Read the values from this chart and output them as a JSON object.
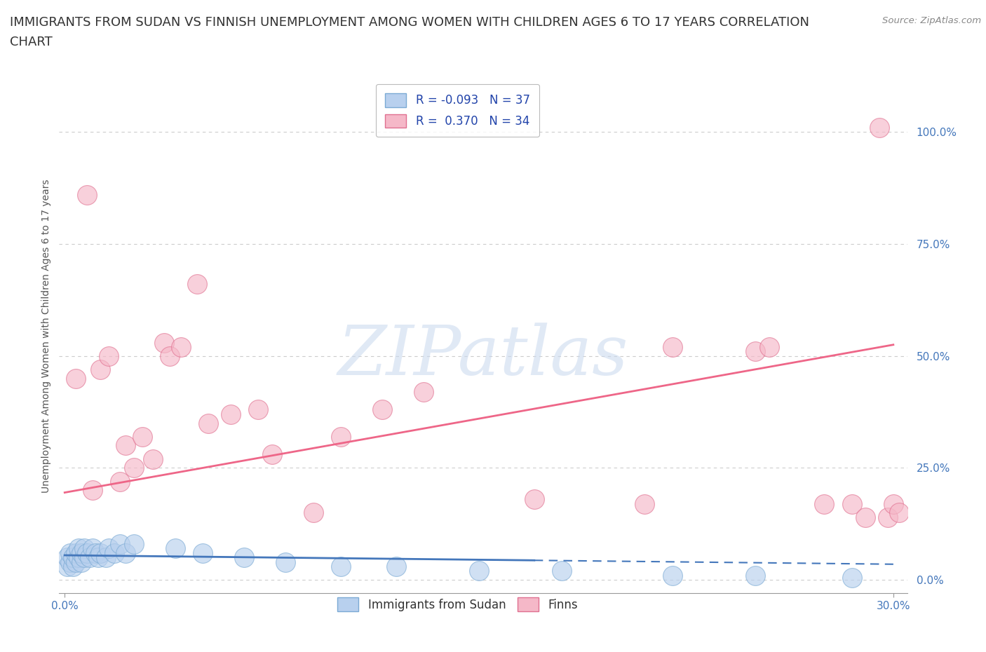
{
  "title_line1": "IMMIGRANTS FROM SUDAN VS FINNISH UNEMPLOYMENT AMONG WOMEN WITH CHILDREN AGES 6 TO 17 YEARS CORRELATION",
  "title_line2": "CHART",
  "source_text": "Source: ZipAtlas.com",
  "ylabel": "Unemployment Among Women with Children Ages 6 to 17 years",
  "watermark": "ZIPatlas",
  "xlim": [
    -0.002,
    0.305
  ],
  "ylim": [
    -0.03,
    1.12
  ],
  "yticks": [
    0.0,
    0.25,
    0.5,
    0.75,
    1.0
  ],
  "ytick_labels": [
    "0.0%",
    "25.0%",
    "50.0%",
    "75.0%",
    "100.0%"
  ],
  "xticks": [
    0.0,
    0.3
  ],
  "xtick_labels": [
    "0.0%",
    "30.0%"
  ],
  "blue_scatter_x": [
    0.001,
    0.001,
    0.002,
    0.002,
    0.003,
    0.003,
    0.004,
    0.004,
    0.005,
    0.005,
    0.006,
    0.006,
    0.007,
    0.007,
    0.008,
    0.009,
    0.01,
    0.011,
    0.012,
    0.013,
    0.015,
    0.016,
    0.018,
    0.02,
    0.022,
    0.025,
    0.04,
    0.05,
    0.065,
    0.08,
    0.1,
    0.12,
    0.15,
    0.18,
    0.22,
    0.25,
    0.285
  ],
  "blue_scatter_y": [
    0.03,
    0.05,
    0.04,
    0.06,
    0.03,
    0.05,
    0.04,
    0.06,
    0.05,
    0.07,
    0.04,
    0.06,
    0.05,
    0.07,
    0.06,
    0.05,
    0.07,
    0.06,
    0.05,
    0.06,
    0.05,
    0.07,
    0.06,
    0.08,
    0.06,
    0.08,
    0.07,
    0.06,
    0.05,
    0.04,
    0.03,
    0.03,
    0.02,
    0.02,
    0.01,
    0.01,
    0.005
  ],
  "pink_scatter_x": [
    0.004,
    0.008,
    0.01,
    0.013,
    0.016,
    0.02,
    0.022,
    0.025,
    0.028,
    0.032,
    0.036,
    0.038,
    0.042,
    0.048,
    0.052,
    0.06,
    0.07,
    0.075,
    0.09,
    0.1,
    0.115,
    0.13,
    0.17,
    0.21,
    0.22,
    0.25,
    0.255,
    0.275,
    0.285,
    0.29,
    0.295,
    0.298,
    0.3,
    0.302
  ],
  "pink_scatter_y": [
    0.45,
    0.86,
    0.2,
    0.47,
    0.5,
    0.22,
    0.3,
    0.25,
    0.32,
    0.27,
    0.53,
    0.5,
    0.52,
    0.66,
    0.35,
    0.37,
    0.38,
    0.28,
    0.15,
    0.32,
    0.38,
    0.42,
    0.18,
    0.17,
    0.52,
    0.51,
    0.52,
    0.17,
    0.17,
    0.14,
    1.01,
    0.14,
    0.17,
    0.15
  ],
  "blue_line_x": [
    0.0,
    0.3
  ],
  "blue_line_y": [
    0.055,
    0.035
  ],
  "blue_line_solid_end": 0.17,
  "pink_line_x": [
    0.0,
    0.3
  ],
  "pink_line_y": [
    0.195,
    0.525
  ],
  "blue_line_color": "#4477bb",
  "pink_line_color": "#ee6688",
  "blue_scatter_color": "#b8d0ee",
  "blue_scatter_edge": "#7baad4",
  "pink_scatter_color": "#f5b8c8",
  "pink_scatter_edge": "#e07090",
  "grid_color": "#cccccc",
  "grid_style": "dashed",
  "background_color": "#ffffff",
  "title_fontsize": 13,
  "axis_label_fontsize": 10,
  "tick_fontsize": 11,
  "legend_fontsize": 12,
  "tick_color": "#4477bb",
  "ylabel_color": "#555555"
}
